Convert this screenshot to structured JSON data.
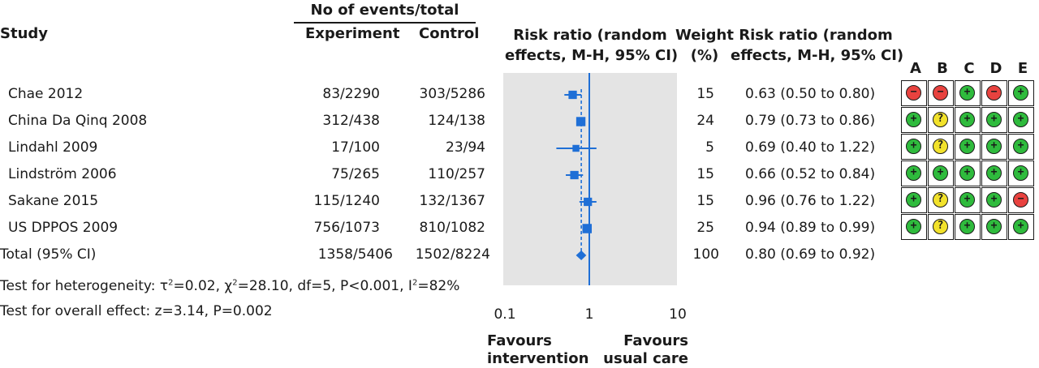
{
  "headers": {
    "events_group": "No of events/total",
    "study": "Study",
    "experiment": "Experiment",
    "control": "Control",
    "rr_plot": [
      "Risk ratio (random",
      "effects, M-H, 95% CI)"
    ],
    "weight": [
      "Weight",
      "(%)"
    ],
    "rr_text": [
      "Risk ratio (random",
      "effects, M-H, 95% CI)"
    ]
  },
  "rob_domains": [
    "A",
    "B",
    "C",
    "D",
    "E"
  ],
  "studies": [
    {
      "name": "Chae 2012",
      "experiment": "83/2290",
      "control": "303/5286",
      "weight": "15",
      "ci_text": "0.63 (0.50 to 0.80)",
      "rr": 0.63,
      "lo": 0.5,
      "hi": 0.8,
      "rob": [
        "high",
        "high",
        "low",
        "high",
        "low"
      ]
    },
    {
      "name": "China Da Qinq 2008",
      "experiment": "312/438",
      "control": "124/138",
      "weight": "24",
      "ci_text": "0.79 (0.73 to 0.86)",
      "rr": 0.79,
      "lo": 0.73,
      "hi": 0.86,
      "rob": [
        "low",
        "unclear",
        "low",
        "low",
        "low"
      ]
    },
    {
      "name": "Lindahl 2009",
      "experiment": "17/100",
      "control": "23/94",
      "weight": "5",
      "ci_text": "0.69 (0.40 to 1.22)",
      "rr": 0.69,
      "lo": 0.4,
      "hi": 1.22,
      "rob": [
        "low",
        "unclear",
        "low",
        "low",
        "low"
      ]
    },
    {
      "name": "Lindström 2006",
      "experiment": "75/265",
      "control": "110/257",
      "weight": "15",
      "ci_text": "0.66 (0.52 to 0.84)",
      "rr": 0.66,
      "lo": 0.52,
      "hi": 0.84,
      "rob": [
        "low",
        "low",
        "low",
        "low",
        "low"
      ]
    },
    {
      "name": "Sakane 2015",
      "experiment": "115/1240",
      "control": "132/1367",
      "weight": "15",
      "ci_text": "0.96 (0.76 to 1.22)",
      "rr": 0.96,
      "lo": 0.76,
      "hi": 1.22,
      "rob": [
        "low",
        "unclear",
        "low",
        "low",
        "high"
      ]
    },
    {
      "name": "US DPPOS 2009",
      "experiment": "756/1073",
      "control": "810/1082",
      "weight": "25",
      "ci_text": "0.94 (0.89 to 0.99)",
      "rr": 0.94,
      "lo": 0.89,
      "hi": 0.99,
      "rob": [
        "low",
        "unclear",
        "low",
        "low",
        "low"
      ]
    }
  ],
  "total": {
    "name": "Total (95% CI)",
    "experiment": "1358/5406",
    "control": "1502/8224",
    "weight": "100",
    "ci_text": "0.80 (0.69 to 0.92)",
    "rr": 0.8,
    "lo": 0.69,
    "hi": 0.92
  },
  "heterogeneity": {
    "prefix": "Test for heterogeneity: τ",
    "tau_sup": "2",
    "mid": "=0.02, χ",
    "chi_sup": "2",
    "rest": "=28.10, df=5, P<0.001, I",
    "i_sup": "2",
    "end": "=82%"
  },
  "overall_effect": "Test for overall effect: z=3.14, P=0.002",
  "favours": {
    "left": [
      "Favours",
      "intervention"
    ],
    "right": [
      "Favours",
      "usual care"
    ]
  },
  "colors": {
    "marker": "#1f6fd6",
    "plot_bg": "#e4e4e4",
    "low": "#2fbb3d",
    "high": "#e8423f",
    "unclear": "#f2e22b"
  },
  "chart_data": {
    "type": "scatter",
    "scale": "log",
    "xlim": [
      0.1,
      10
    ],
    "ticks": [
      "0.1",
      "1",
      "10"
    ],
    "reference_line": 1,
    "pooled_estimate": 0.8,
    "points": [
      {
        "study": "Chae 2012",
        "rr": 0.63,
        "lo": 0.5,
        "hi": 0.8,
        "weight": 15
      },
      {
        "study": "China Da Qinq 2008",
        "rr": 0.79,
        "lo": 0.73,
        "hi": 0.86,
        "weight": 24
      },
      {
        "study": "Lindahl 2009",
        "rr": 0.69,
        "lo": 0.4,
        "hi": 1.22,
        "weight": 5
      },
      {
        "study": "Lindström 2006",
        "rr": 0.66,
        "lo": 0.52,
        "hi": 0.84,
        "weight": 15
      },
      {
        "study": "Sakane 2015",
        "rr": 0.96,
        "lo": 0.76,
        "hi": 1.22,
        "weight": 15
      },
      {
        "study": "US DPPOS 2009",
        "rr": 0.94,
        "lo": 0.89,
        "hi": 0.99,
        "weight": 25
      }
    ],
    "total": {
      "rr": 0.8,
      "lo": 0.69,
      "hi": 0.92
    }
  }
}
